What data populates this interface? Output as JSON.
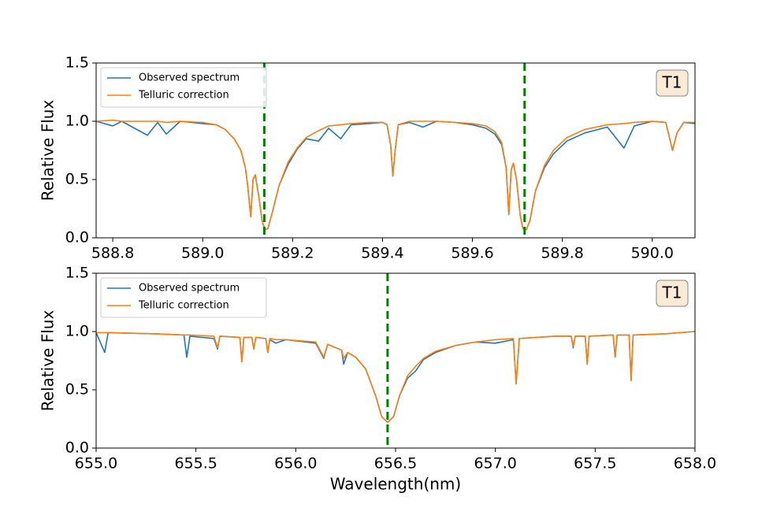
{
  "chart_data": [
    {
      "type": "line",
      "ylabel": "Relative Flux",
      "annotation": "T1",
      "legend": "upper left",
      "grid": false,
      "xlim": [
        588.763,
        590.095
      ],
      "ylim": [
        0,
        1.5
      ],
      "xticks": [
        588.8,
        {
          "value": 589.0,
          "label": "589.0"
        },
        589.2,
        589.4,
        589.6,
        589.8,
        {
          "value": 590.0,
          "label": "590.0"
        }
      ],
      "yticks": [
        {
          "value": 0,
          "label": "0.0"
        },
        0.5,
        {
          "value": 1,
          "label": "1.0"
        },
        1.5
      ],
      "vlines": [
        589.137,
        589.716
      ],
      "vline_color": "#008000",
      "x": [
        588.763,
        588.8,
        588.82,
        588.877,
        588.9,
        588.919,
        588.95,
        589.0,
        589.03,
        589.05,
        589.07,
        589.085,
        589.095,
        589.1,
        589.107,
        589.112,
        589.117,
        589.125,
        589.132,
        589.138,
        589.145,
        589.155,
        589.17,
        589.19,
        589.21,
        589.23,
        589.258,
        589.28,
        589.307,
        589.33,
        589.37,
        589.4,
        589.41,
        589.418,
        589.423,
        589.428,
        589.435,
        589.46,
        589.49,
        589.52,
        589.56,
        589.6,
        589.63,
        589.65,
        589.665,
        589.675,
        589.681,
        589.686,
        589.691,
        589.698,
        589.706,
        589.712,
        589.72,
        589.728,
        589.74,
        589.76,
        589.78,
        589.81,
        589.85,
        589.9,
        589.937,
        589.96,
        590.0,
        590.03,
        590.045,
        590.055,
        590.07,
        590.095
      ],
      "series": [
        {
          "name": "Observed spectrum",
          "color": "#1f77b4",
          "values": [
            1.0,
            0.96,
            1.0,
            0.88,
            0.99,
            0.89,
            1.0,
            0.98,
            0.97,
            0.93,
            0.85,
            0.75,
            0.6,
            0.45,
            0.18,
            0.5,
            0.54,
            0.35,
            0.15,
            0.07,
            0.08,
            0.22,
            0.45,
            0.63,
            0.76,
            0.85,
            0.83,
            0.94,
            0.85,
            0.97,
            0.98,
            0.99,
            0.97,
            0.8,
            0.53,
            0.75,
            0.97,
            0.99,
            0.95,
            1.0,
            0.99,
            0.97,
            0.94,
            0.89,
            0.8,
            0.6,
            0.2,
            0.58,
            0.64,
            0.5,
            0.2,
            0.08,
            0.07,
            0.15,
            0.4,
            0.6,
            0.72,
            0.83,
            0.9,
            0.95,
            0.77,
            0.96,
            1.0,
            0.99,
            0.75,
            0.9,
            0.99,
            0.98
          ]
        },
        {
          "name": "Telluric correction",
          "color": "#ff7f0e",
          "values": [
            1.0,
            1.01,
            1.0,
            1.0,
            1.0,
            0.99,
            1.0,
            0.99,
            0.97,
            0.93,
            0.85,
            0.75,
            0.6,
            0.45,
            0.18,
            0.5,
            0.54,
            0.35,
            0.15,
            0.07,
            0.08,
            0.22,
            0.45,
            0.65,
            0.77,
            0.86,
            0.92,
            0.96,
            0.97,
            0.98,
            0.99,
            0.99,
            0.97,
            0.8,
            0.53,
            0.75,
            0.97,
            1.0,
            1.0,
            1.0,
            0.99,
            0.98,
            0.96,
            0.91,
            0.82,
            0.6,
            0.2,
            0.58,
            0.64,
            0.5,
            0.2,
            0.08,
            0.07,
            0.15,
            0.4,
            0.62,
            0.75,
            0.86,
            0.93,
            0.97,
            0.98,
            0.99,
            1.0,
            0.99,
            0.75,
            0.9,
            0.99,
            0.99
          ]
        }
      ]
    },
    {
      "type": "line",
      "ylabel": "Relative Flux",
      "xlabel": "Wavelength(nm)",
      "annotation": "T1",
      "legend": "upper left",
      "grid": false,
      "xlim": [
        655,
        658
      ],
      "ylim": [
        0,
        1.5
      ],
      "xticks": [
        {
          "value": 655,
          "label": "655.0"
        },
        655.5,
        {
          "value": 656,
          "label": "656.0"
        },
        656.5,
        {
          "value": 657,
          "label": "657.0"
        },
        657.5,
        {
          "value": 658,
          "label": "658.0"
        }
      ],
      "yticks": [
        {
          "value": 0,
          "label": "0.0"
        },
        0.5,
        {
          "value": 1,
          "label": "1.0"
        },
        1.5
      ],
      "vlines": [
        656.46
      ],
      "vline_color": "#008000",
      "x": [
        655.0,
        655.043,
        655.06,
        655.3,
        655.44,
        655.454,
        655.47,
        655.59,
        655.608,
        655.62,
        655.72,
        655.73,
        655.74,
        655.78,
        655.79,
        655.8,
        655.85,
        655.86,
        655.87,
        655.9,
        655.95,
        656.1,
        656.14,
        656.16,
        656.23,
        656.24,
        656.26,
        656.3,
        656.35,
        656.4,
        656.43,
        656.46,
        656.49,
        656.52,
        656.56,
        656.6,
        656.64,
        656.7,
        656.8,
        656.9,
        657.0,
        657.09,
        657.104,
        657.12,
        657.3,
        657.38,
        657.39,
        657.4,
        657.45,
        657.46,
        657.47,
        657.59,
        657.6,
        657.61,
        657.67,
        657.68,
        657.69,
        657.85,
        658.0
      ],
      "series": [
        {
          "name": "Observed spectrum",
          "color": "#1f77b4",
          "values": [
            0.99,
            0.82,
            0.99,
            0.98,
            0.97,
            0.78,
            0.96,
            0.94,
            0.85,
            0.96,
            0.95,
            0.74,
            0.95,
            0.95,
            0.85,
            0.95,
            0.94,
            0.82,
            0.93,
            0.9,
            0.93,
            0.9,
            0.77,
            0.89,
            0.84,
            0.72,
            0.82,
            0.78,
            0.68,
            0.45,
            0.27,
            0.22,
            0.27,
            0.45,
            0.6,
            0.66,
            0.76,
            0.82,
            0.88,
            0.91,
            0.9,
            0.93,
            0.55,
            0.94,
            0.96,
            0.96,
            0.86,
            0.96,
            0.96,
            0.72,
            0.96,
            0.97,
            0.78,
            0.97,
            0.97,
            0.58,
            0.97,
            0.98,
            1.0
          ]
        },
        {
          "name": "Telluric correction",
          "color": "#ff7f0e",
          "values": [
            0.99,
            0.99,
            0.99,
            0.98,
            0.97,
            0.97,
            0.97,
            0.96,
            0.86,
            0.96,
            0.95,
            0.74,
            0.95,
            0.95,
            0.85,
            0.95,
            0.94,
            0.82,
            0.94,
            0.93,
            0.93,
            0.91,
            0.78,
            0.89,
            0.84,
            0.77,
            0.82,
            0.78,
            0.68,
            0.45,
            0.27,
            0.22,
            0.27,
            0.45,
            0.62,
            0.7,
            0.77,
            0.83,
            0.88,
            0.91,
            0.93,
            0.94,
            0.55,
            0.94,
            0.96,
            0.96,
            0.87,
            0.96,
            0.96,
            0.72,
            0.96,
            0.97,
            0.78,
            0.97,
            0.97,
            0.58,
            0.97,
            0.98,
            1.0
          ]
        }
      ]
    }
  ]
}
